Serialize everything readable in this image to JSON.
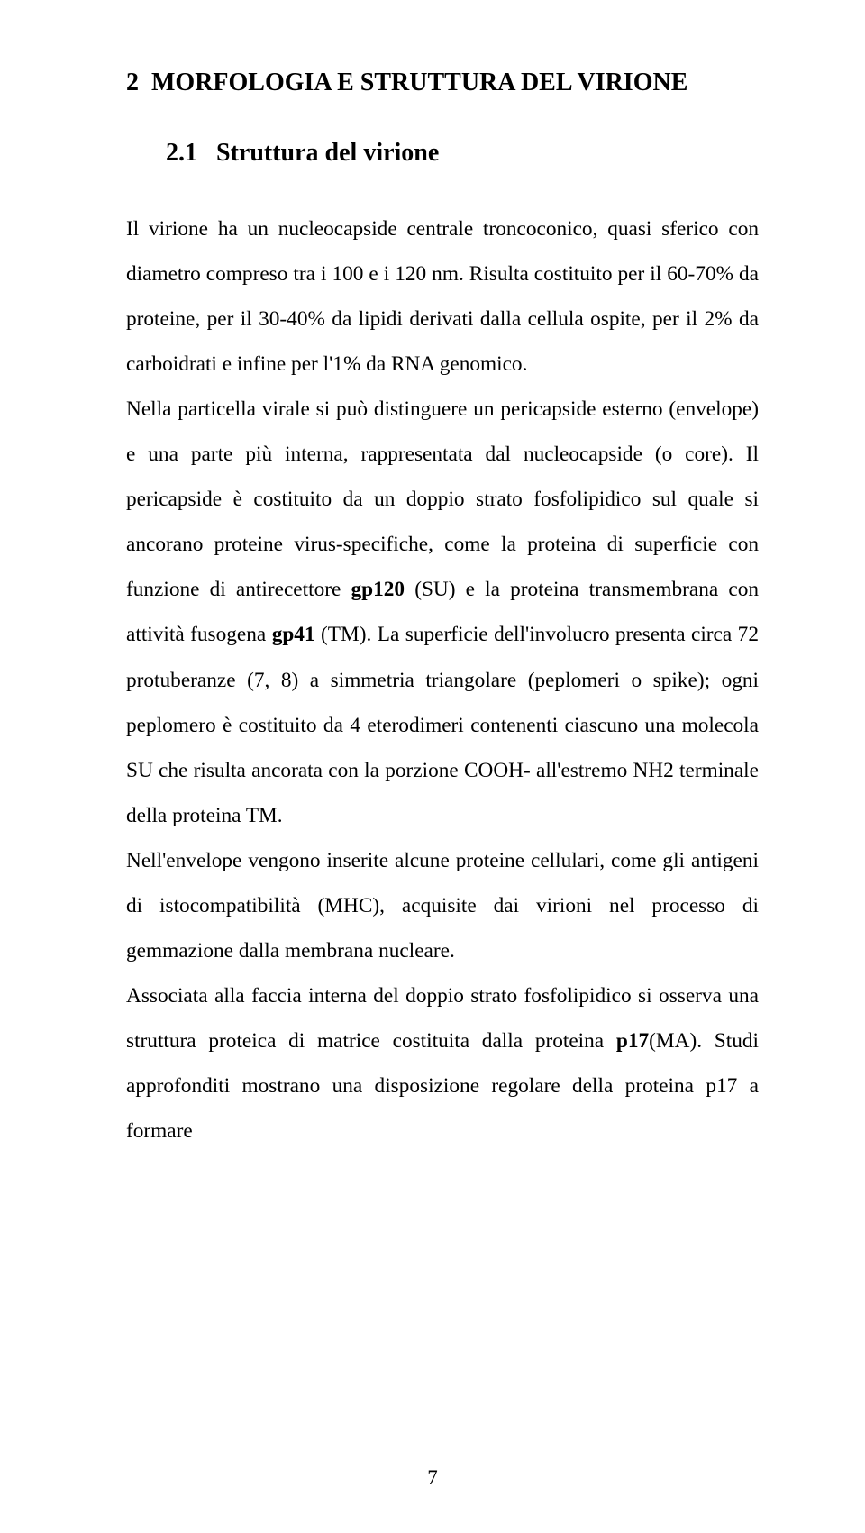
{
  "page": {
    "number": "7"
  },
  "chapter": {
    "number": "2",
    "title": "MORFOLOGIA E STRUTTURA DEL VIRIONE"
  },
  "section": {
    "number": "2.1",
    "title": "Struttura del virione"
  },
  "body": {
    "p1_a": "Il virione ha un nucleocapside centrale troncoconico, quasi sferico con diametro compreso tra i 100 e i 120 nm. Risulta costituito per il 60-70% da proteine, per il 30-40% da lipidi derivati dalla cellula ospite, per il 2% da carboidrati e infine per l'1% da RNA genomico.",
    "p2_a": "Nella particella virale si può distinguere un pericapside esterno (envelope) e una parte più interna, rappresentata dal nucleocapside (o core). Il pericapside è costituito da un doppio strato fosfolipidico sul quale si ancorano proteine virus-specifiche, come la proteina di superficie con funzione di antirecettore ",
    "p2_bold1": "gp120",
    "p2_b": " (SU) e la proteina transmembrana con attività fusogena ",
    "p2_bold2": "gp41",
    "p2_c": " (TM). La superficie dell'involucro presenta circa 72 protuberanze (7, 8) a simmetria triangolare (peplomeri o spike); ogni peplomero è costituito da 4 eterodimeri contenenti ciascuno una molecola SU che risulta ancorata con la porzione COOH- all'estremo NH2 terminale della proteina TM.",
    "p3": "Nell'envelope vengono inserite alcune proteine cellulari, come gli antigeni di istocompatibilità (MHC), acquisite dai virioni nel processo di gemmazione dalla membrana nucleare.",
    "p4_a": "Associata alla faccia interna del doppio strato fosfolipidico si osserva una struttura proteica di matrice costituita dalla proteina ",
    "p4_bold": "p17",
    "p4_b": "(MA). Studi approfonditi mostrano una disposizione regolare della proteina p17 a formare"
  }
}
